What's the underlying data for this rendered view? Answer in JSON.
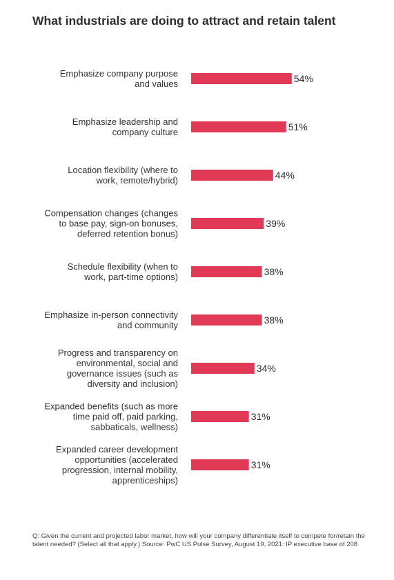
{
  "title": "What industrials are doing to attract and retain talent",
  "footnote": "Q: Given the current and projected labor market, how will your company differentiate itself to compete for/retain the talent needed? (Select all that apply.) Source: PwC US Pulse Survey, August 19, 2021: IP executive base of 208",
  "colors": {
    "bar": "#e03a57",
    "text": "#2d2d2d"
  },
  "chart_data": {
    "type": "bar",
    "orientation": "horizontal",
    "title": "What industrials are doing to attract and retain talent",
    "xlabel": "",
    "ylabel": "",
    "unit": "%",
    "xlim": [
      0,
      100
    ],
    "grid": false,
    "categories": [
      [
        "Emphasize company purpose",
        "and values"
      ],
      [
        "Emphasize leadership and",
        "company culture"
      ],
      [
        "Location flexibility (where to",
        "work, remote/hybrid)"
      ],
      [
        "Compensation changes (changes",
        "to base pay, sign-on bonuses,",
        "deferred retention bonus)"
      ],
      [
        "Schedule flexibility (when to",
        "work, part-time options)"
      ],
      [
        "Emphasize in-person connectivity",
        "and community"
      ],
      [
        "Progress and transparency on",
        "environmental, social and",
        "governance issues (such as",
        "diversity and inclusion)"
      ],
      [
        "Expanded benefits (such as more",
        "time paid off, paid parking,",
        "sabbaticals, wellness)"
      ],
      [
        "Expanded career development",
        "opportunities (accelerated",
        "progression, internal mobility,",
        "apprenticeships)"
      ]
    ],
    "values": [
      54,
      51,
      44,
      39,
      38,
      38,
      34,
      31,
      31
    ],
    "value_labels": [
      "54%",
      "51%",
      "44%",
      "39%",
      "38%",
      "38%",
      "34%",
      "31%",
      "31%"
    ]
  }
}
